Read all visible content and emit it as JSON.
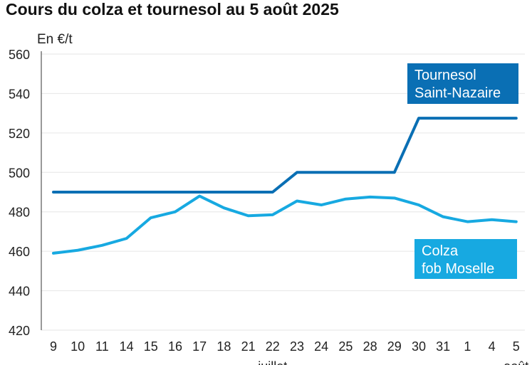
{
  "title": "Cours du colza et tournesol au 5 août 2025",
  "unit_label": "En €/t",
  "chart_data": {
    "type": "line",
    "title": "Cours du colza et tournesol au 5 août 2025",
    "ylabel": "En €/t",
    "ylim": [
      420,
      560
    ],
    "yticks": [
      420,
      440,
      460,
      480,
      500,
      520,
      540,
      560
    ],
    "categories": [
      "9",
      "10",
      "11",
      "14",
      "15",
      "16",
      "17",
      "18",
      "21",
      "22",
      "23",
      "24",
      "25",
      "28",
      "29",
      "30",
      "31",
      "1",
      "4",
      "5"
    ],
    "month_labels": [
      {
        "label": "juillet",
        "index": 9
      },
      {
        "label": "août",
        "index": 19
      }
    ],
    "grid": "horizontal",
    "series": [
      {
        "name": "Tournesol Saint-Nazaire",
        "legend_lines": [
          "Tournesol",
          "Saint-Nazaire"
        ],
        "color": "#0a6fb4",
        "values": [
          490,
          490,
          490,
          490,
          490,
          490,
          490,
          490,
          490,
          490,
          500,
          500,
          500,
          500,
          500,
          527.5,
          527.5,
          527.5,
          527.5,
          527.5
        ]
      },
      {
        "name": "Colza fob Moselle",
        "legend_lines": [
          "Colza",
          "fob Moselle"
        ],
        "color": "#17a9e1",
        "values": [
          459,
          460.5,
          463,
          466.5,
          477,
          480,
          488,
          482,
          478,
          478.5,
          485.5,
          483.5,
          486.5,
          487.5,
          487,
          483.5,
          477.5,
          475,
          476,
          475
        ]
      }
    ]
  }
}
